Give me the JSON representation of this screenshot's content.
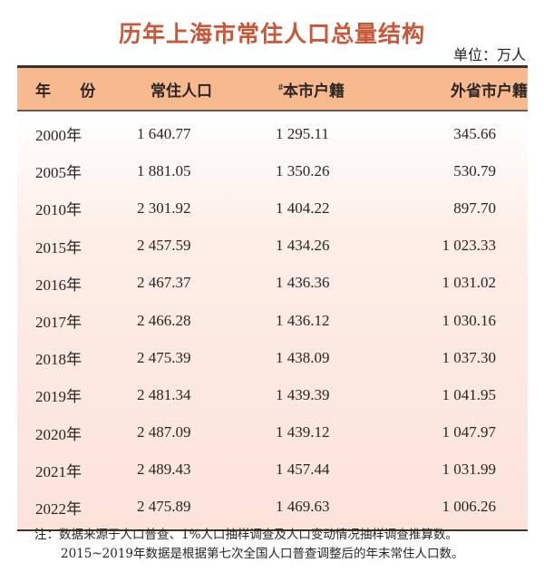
{
  "title": "历年上海市常住人口总量结构",
  "unit": "单位：万人",
  "table": {
    "headers": {
      "year": "年 份",
      "resident": "常住人口",
      "local_prefix": "#",
      "local": "本市户籍",
      "nonlocal": "外省市户籍"
    },
    "rows": [
      {
        "year": "2000年",
        "resident": "1 640.77",
        "local": "1 295.11",
        "nonlocal": "345.66"
      },
      {
        "year": "2005年",
        "resident": "1 881.05",
        "local": "1 350.26",
        "nonlocal": "530.79"
      },
      {
        "year": "2010年",
        "resident": "2 301.92",
        "local": "1 404.22",
        "nonlocal": "897.70"
      },
      {
        "year": "2015年",
        "resident": "2 457.59",
        "local": "1 434.26",
        "nonlocal": "1 023.33"
      },
      {
        "year": "2016年",
        "resident": "2 467.37",
        "local": "1 436.36",
        "nonlocal": "1 031.02"
      },
      {
        "year": "2017年",
        "resident": "2 466.28",
        "local": "1 436.12",
        "nonlocal": "1 030.16"
      },
      {
        "year": "2018年",
        "resident": "2 475.39",
        "local": "1 438.09",
        "nonlocal": "1 037.30"
      },
      {
        "year": "2019年",
        "resident": "2 481.34",
        "local": "1 439.39",
        "nonlocal": "1 041.95"
      },
      {
        "year": "2020年",
        "resident": "2 487.09",
        "local": "1 439.12",
        "nonlocal": "1 047.97"
      },
      {
        "year": "2021年",
        "resident": "2 489.43",
        "local": "1 457.44",
        "nonlocal": "1 031.99"
      },
      {
        "year": "2022年",
        "resident": "2 475.89",
        "local": "1 469.63",
        "nonlocal": "1 006.26"
      }
    ]
  },
  "notes": {
    "line1": "注：数据来源于人口普查、1%人口抽样调查及人口变动情况抽样调查推算数。",
    "line2": "2015~2019年数据是根据第七次全国人口普查调整后的年末常住人口数。"
  },
  "colors": {
    "title": "#c8583a",
    "header_bg": "#f8b98f",
    "body_bg_end": "#fbe3da",
    "rule": "#3b332e"
  }
}
